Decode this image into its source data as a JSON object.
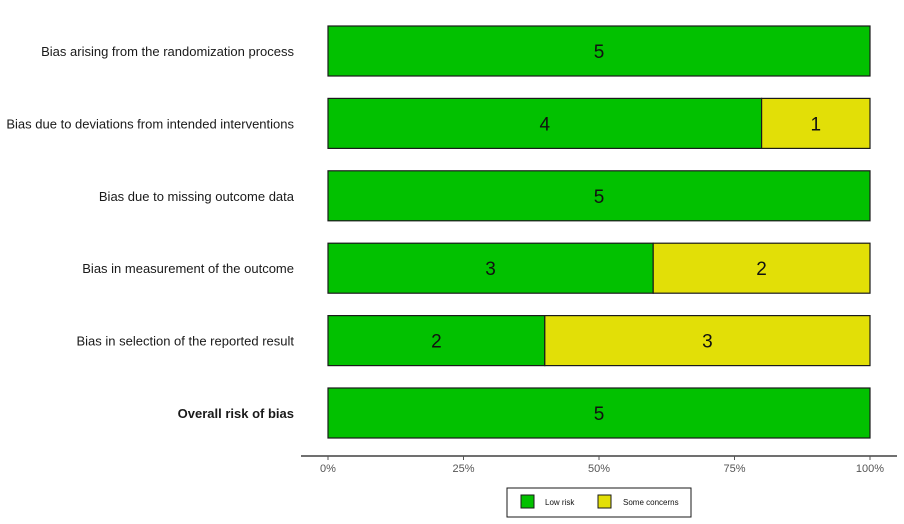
{
  "chart_data": {
    "type": "bar",
    "orientation": "horizontal",
    "stacked": true,
    "categories": [
      "Bias arising from the randomization process",
      "Bias due to deviations from intended interventions",
      "Bias due to missing outcome data",
      "Bias in measurement of the outcome",
      "Bias in selection of the reported result",
      "Overall risk of bias"
    ],
    "bold_categories": [
      "Overall risk of bias"
    ],
    "series": [
      {
        "name": "Low risk",
        "color": "#02c100",
        "values": [
          5,
          4,
          5,
          3,
          2,
          5
        ]
      },
      {
        "name": "Some concerns",
        "color": "#e2df07",
        "values": [
          0,
          1,
          0,
          2,
          3,
          0
        ]
      }
    ],
    "xticks": [
      "0%",
      "25%",
      "50%",
      "75%",
      "100%"
    ],
    "xlim": [
      0,
      100
    ],
    "legend_position": "bottom",
    "grid": false
  }
}
